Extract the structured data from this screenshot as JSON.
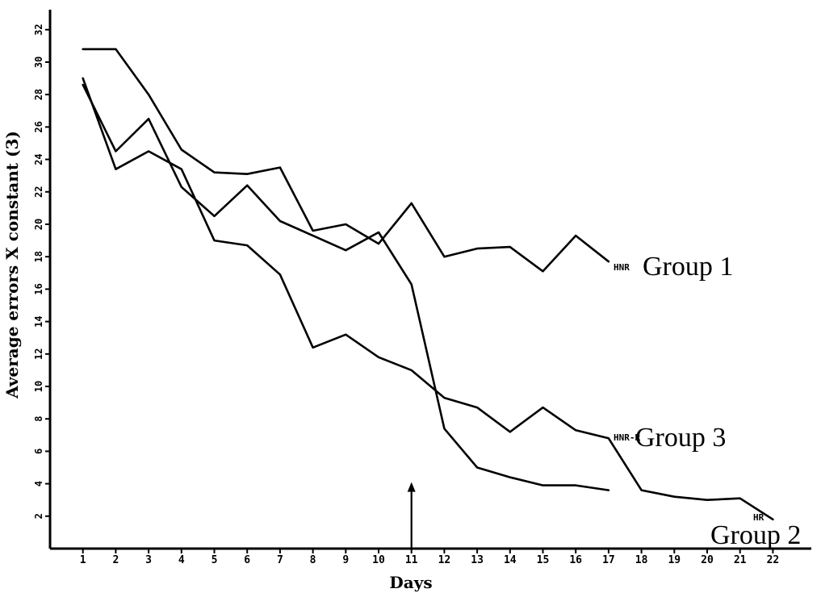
{
  "chart_data": {
    "type": "line",
    "xlabel": "Days",
    "ylabel": "Average errors X constant (3)",
    "x_ticks": [
      "1",
      "2",
      "3",
      "4",
      "5",
      "6",
      "7",
      "8",
      "9",
      "10",
      "11",
      "12",
      "13",
      "14",
      "15",
      "16",
      "17",
      "18",
      "19",
      "20",
      "21",
      "22"
    ],
    "y_ticks": [
      "2",
      "4",
      "6",
      "8",
      "10",
      "12",
      "14",
      "16",
      "18",
      "20",
      "22",
      "24",
      "26",
      "28",
      "30",
      "32"
    ],
    "xlim": [
      0,
      23.3
    ],
    "ylim": [
      0,
      33
    ],
    "marker": {
      "x": 11,
      "y_from": 0,
      "y_to": 4
    },
    "series": [
      {
        "name": "Group 1",
        "code": "HNR",
        "x": [
          1,
          2,
          3,
          4,
          5,
          6,
          7,
          8,
          9,
          10,
          11,
          12,
          13,
          14,
          15,
          16,
          17
        ],
        "y": [
          30.8,
          30.8,
          28.0,
          24.6,
          23.2,
          23.1,
          23.5,
          19.6,
          20.0,
          18.8,
          21.3,
          18.0,
          18.5,
          18.6,
          17.1,
          19.3,
          17.7
        ]
      },
      {
        "name": "Group 2",
        "code": "HR",
        "x": [
          1,
          2,
          3,
          4,
          5,
          6,
          7,
          8,
          9,
          10,
          11,
          12,
          13,
          14,
          15,
          16,
          17
        ],
        "y": [
          28.6,
          24.5,
          26.5,
          22.3,
          20.5,
          22.4,
          20.2,
          19.3,
          18.4,
          19.5,
          16.3,
          7.4,
          5.0,
          4.4,
          3.9,
          3.9,
          3.6
        ]
      },
      {
        "name": "Group 3",
        "code": "HNR-R",
        "x": [
          1,
          2,
          3,
          4,
          5,
          6,
          7,
          8,
          9,
          10,
          11,
          12,
          13,
          14,
          15,
          16,
          17,
          18,
          19,
          20,
          21,
          22
        ],
        "y": [
          29.0,
          23.4,
          24.5,
          23.4,
          19.0,
          18.7,
          16.9,
          12.4,
          13.2,
          11.8,
          11.0,
          9.3,
          8.7,
          7.2,
          8.7,
          7.3,
          6.8,
          3.6,
          3.2,
          3.0,
          3.1,
          1.8
        ]
      }
    ]
  }
}
